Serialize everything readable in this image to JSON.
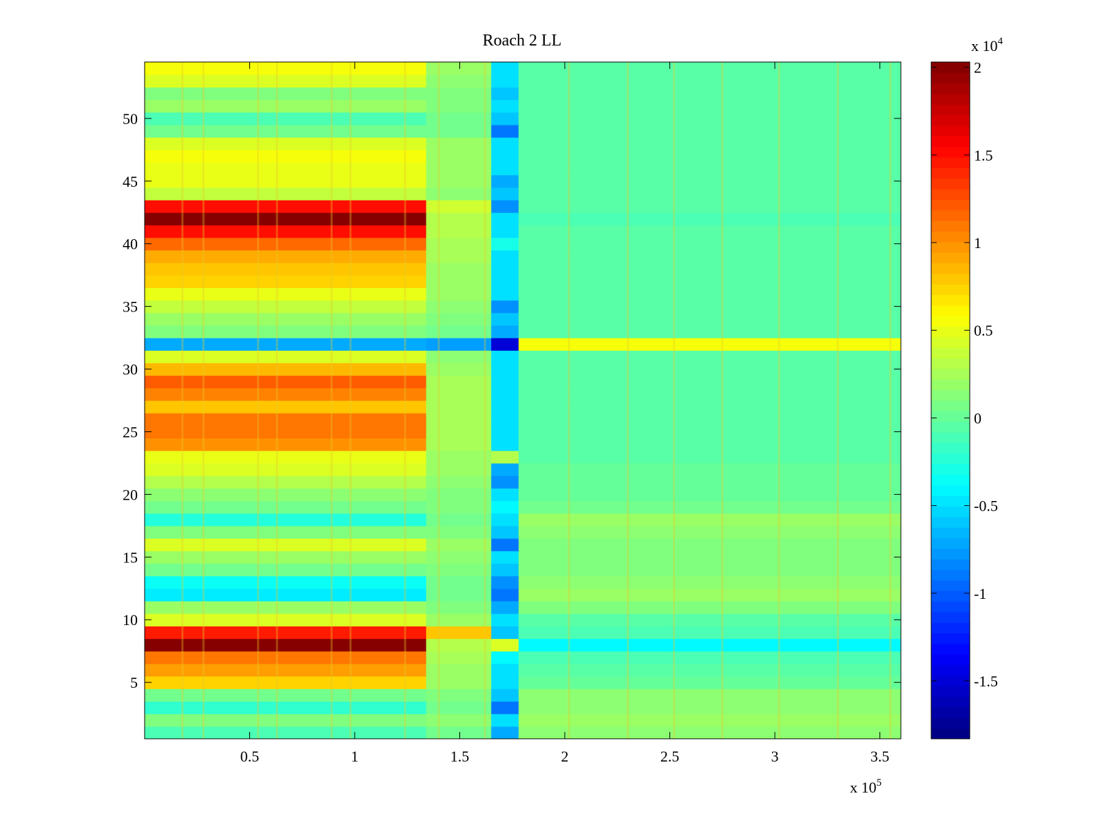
{
  "chart_data": {
    "type": "heatmap",
    "title": "Roach 2 LL",
    "xlabel": "",
    "ylabel": "",
    "x_multiplier_label": {
      "prefix": "x 10",
      "exponent": "5"
    },
    "colorbar_multiplier_label": {
      "prefix": "x 10",
      "exponent": "4"
    },
    "xlim": [
      0,
      3.6
    ],
    "ylim": [
      0.5,
      54.5
    ],
    "x_ticks": [
      0.5,
      1,
      1.5,
      2,
      2.5,
      3,
      3.5
    ],
    "x_tick_labels": [
      "0.5",
      "1",
      "1.5",
      "2",
      "2.5",
      "3",
      "3.5"
    ],
    "y_ticks": [
      5,
      10,
      15,
      20,
      25,
      30,
      35,
      40,
      45,
      50
    ],
    "y_tick_labels": [
      "5",
      "10",
      "15",
      "20",
      "25",
      "30",
      "35",
      "40",
      "45",
      "50"
    ],
    "colorbar_ticks": [
      2,
      1.5,
      1,
      0.5,
      0,
      -0.5,
      -1,
      -1.5
    ],
    "colorbar_tick_labels": [
      "2",
      "1.5",
      "1",
      "0.5",
      "0",
      "-0.5",
      "-1",
      "-1.5"
    ],
    "clim": [
      -1.83,
      2.03
    ],
    "colormap": "jet",
    "grid": false,
    "x_segments": [
      {
        "name": "left_block",
        "x_range": [
          0,
          1.34
        ]
      },
      {
        "name": "transition",
        "x_range": [
          1.34,
          1.65
        ]
      },
      {
        "name": "gap_band",
        "x_range": [
          1.65,
          1.78
        ]
      },
      {
        "name": "right_block",
        "x_range": [
          1.78,
          3.6
        ]
      }
    ],
    "rows": [
      {
        "y": 1,
        "left": -0.1,
        "trans": 0.05,
        "gap": -0.7,
        "right": 0.15
      },
      {
        "y": 2,
        "left": 0.1,
        "trans": 0.15,
        "gap": -0.5,
        "right": 0.2
      },
      {
        "y": 3,
        "left": -0.2,
        "trans": 0.05,
        "gap": -0.9,
        "right": 0.15
      },
      {
        "y": 4,
        "left": 0.05,
        "trans": 0.1,
        "gap": -0.6,
        "right": 0.15
      },
      {
        "y": 5,
        "left": 0.75,
        "trans": 0.2,
        "gap": -0.5,
        "right": 0.0
      },
      {
        "y": 6,
        "left": 0.95,
        "trans": 0.2,
        "gap": -0.5,
        "right": -0.05
      },
      {
        "y": 7,
        "left": 1.1,
        "trans": 0.25,
        "gap": -0.4,
        "right": -0.1
      },
      {
        "y": 8,
        "left": 2.0,
        "trans": 0.3,
        "gap": 0.45,
        "right": -0.4
      },
      {
        "y": 9,
        "left": 1.45,
        "trans": 0.8,
        "gap": -0.6,
        "right": -0.1
      },
      {
        "y": 10,
        "left": 0.45,
        "trans": 0.2,
        "gap": -0.5,
        "right": -0.05
      },
      {
        "y": 11,
        "left": 0.2,
        "trans": 0.1,
        "gap": -0.7,
        "right": 0.1
      },
      {
        "y": 12,
        "left": -0.45,
        "trans": 0.05,
        "gap": -0.9,
        "right": 0.2
      },
      {
        "y": 13,
        "left": -0.35,
        "trans": 0.05,
        "gap": -0.8,
        "right": 0.15
      },
      {
        "y": 14,
        "left": 0.05,
        "trans": 0.1,
        "gap": -0.6,
        "right": 0.1
      },
      {
        "y": 15,
        "left": 0.2,
        "trans": 0.15,
        "gap": -0.5,
        "right": 0.1
      },
      {
        "y": 16,
        "left": 0.45,
        "trans": 0.2,
        "gap": -0.9,
        "right": 0.1
      },
      {
        "y": 17,
        "left": 0.1,
        "trans": 0.1,
        "gap": -0.6,
        "right": 0.15
      },
      {
        "y": 18,
        "left": -0.25,
        "trans": 0.05,
        "gap": -0.5,
        "right": 0.2
      },
      {
        "y": 19,
        "left": 0.05,
        "trans": 0.1,
        "gap": -0.4,
        "right": 0.05
      },
      {
        "y": 20,
        "left": 0.15,
        "trans": 0.1,
        "gap": -0.5,
        "right": 0.0
      },
      {
        "y": 21,
        "left": 0.3,
        "trans": 0.15,
        "gap": -0.8,
        "right": 0.0
      },
      {
        "y": 22,
        "left": 0.45,
        "trans": 0.2,
        "gap": -0.7,
        "right": 0.0
      },
      {
        "y": 23,
        "left": 0.5,
        "trans": 0.2,
        "gap": 0.3,
        "right": -0.05
      },
      {
        "y": 24,
        "left": 1.0,
        "trans": 0.25,
        "gap": -0.5,
        "right": -0.05
      },
      {
        "y": 25,
        "left": 1.1,
        "trans": 0.25,
        "gap": -0.5,
        "right": -0.05
      },
      {
        "y": 26,
        "left": 1.1,
        "trans": 0.25,
        "gap": -0.5,
        "right": -0.05
      },
      {
        "y": 27,
        "left": 0.8,
        "trans": 0.25,
        "gap": -0.5,
        "right": -0.05
      },
      {
        "y": 28,
        "left": 1.05,
        "trans": 0.25,
        "gap": -0.5,
        "right": -0.05
      },
      {
        "y": 29,
        "left": 1.2,
        "trans": 0.25,
        "gap": -0.5,
        "right": -0.05
      },
      {
        "y": 30,
        "left": 0.85,
        "trans": 0.2,
        "gap": -0.5,
        "right": -0.05
      },
      {
        "y": 31,
        "left": 0.45,
        "trans": 0.15,
        "gap": -0.5,
        "right": -0.05
      },
      {
        "y": 32,
        "left": -0.7,
        "trans": -0.75,
        "gap": -1.5,
        "right": 0.55
      },
      {
        "y": 33,
        "left": 0.1,
        "trans": 0.05,
        "gap": -0.7,
        "right": -0.05
      },
      {
        "y": 34,
        "left": 0.2,
        "trans": 0.1,
        "gap": -0.6,
        "right": -0.05
      },
      {
        "y": 35,
        "left": 0.35,
        "trans": 0.15,
        "gap": -0.8,
        "right": -0.05
      },
      {
        "y": 36,
        "left": 0.5,
        "trans": 0.2,
        "gap": -0.5,
        "right": -0.05
      },
      {
        "y": 37,
        "left": 0.75,
        "trans": 0.2,
        "gap": -0.5,
        "right": -0.05
      },
      {
        "y": 38,
        "left": 0.8,
        "trans": 0.2,
        "gap": -0.5,
        "right": -0.05
      },
      {
        "y": 39,
        "left": 0.9,
        "trans": 0.25,
        "gap": -0.5,
        "right": -0.05
      },
      {
        "y": 40,
        "left": 1.15,
        "trans": 0.25,
        "gap": -0.3,
        "right": -0.05
      },
      {
        "y": 41,
        "left": 1.5,
        "trans": 0.3,
        "gap": -0.5,
        "right": -0.05
      },
      {
        "y": 42,
        "left": 2.0,
        "trans": 0.3,
        "gap": -0.5,
        "right": -0.1
      },
      {
        "y": 43,
        "left": 1.5,
        "trans": 0.4,
        "gap": -0.8,
        "right": -0.05
      },
      {
        "y": 44,
        "left": 0.35,
        "trans": 0.15,
        "gap": -0.6,
        "right": -0.05
      },
      {
        "y": 45,
        "left": 0.5,
        "trans": 0.2,
        "gap": -0.7,
        "right": -0.05
      },
      {
        "y": 46,
        "left": 0.5,
        "trans": 0.2,
        "gap": -0.5,
        "right": -0.05
      },
      {
        "y": 47,
        "left": 0.55,
        "trans": 0.2,
        "gap": -0.5,
        "right": -0.05
      },
      {
        "y": 48,
        "left": 0.45,
        "trans": 0.2,
        "gap": -0.5,
        "right": -0.05
      },
      {
        "y": 49,
        "left": 0.05,
        "trans": 0.05,
        "gap": -0.9,
        "right": -0.05
      },
      {
        "y": 50,
        "left": -0.1,
        "trans": 0.05,
        "gap": -0.6,
        "right": -0.05
      },
      {
        "y": 51,
        "left": 0.2,
        "trans": 0.1,
        "gap": -0.5,
        "right": -0.05
      },
      {
        "y": 52,
        "left": 0.1,
        "trans": 0.1,
        "gap": -0.6,
        "right": -0.05
      },
      {
        "y": 53,
        "left": 0.45,
        "trans": 0.15,
        "gap": -0.5,
        "right": -0.05
      },
      {
        "y": 54,
        "left": 0.55,
        "trans": 0.2,
        "gap": -0.5,
        "right": -0.05
      }
    ],
    "vertical_streak_x": [
      0.18,
      0.28,
      0.54,
      0.63,
      0.89,
      0.98,
      1.24,
      1.4,
      1.62,
      2.02,
      2.3,
      2.52,
      2.75,
      3.02,
      3.3,
      3.55
    ]
  }
}
